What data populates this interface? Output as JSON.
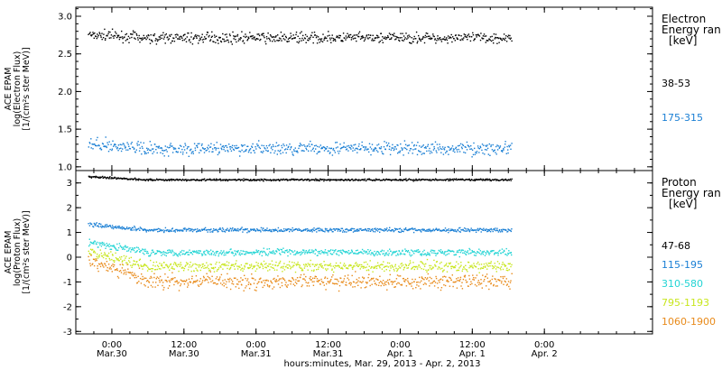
{
  "chart_data": [
    {
      "type": "scatter",
      "ylabel_lines": [
        "ACE EPAM",
        "log(Electron Flux)",
        "[1/(cm²s ster MeV)]"
      ],
      "ylim": [
        0.95,
        3.12
      ],
      "yticks": [
        {
          "value": 1.0,
          "label": "1.0"
        },
        {
          "value": 1.5,
          "label": "1.5"
        },
        {
          "value": 2.0,
          "label": "2.0"
        },
        {
          "value": 2.5,
          "label": "2.5"
        },
        {
          "value": 3.0,
          "label": "3.0"
        }
      ],
      "legend_title": [
        "Electron",
        "Energy ran",
        "[keV]"
      ],
      "series": [
        {
          "name": "38-53",
          "color": "#000000",
          "level": 2.72,
          "spread": 0.05
        },
        {
          "name": "175-315",
          "color": "#1a7fd4",
          "level": 1.25,
          "spread": 0.06
        }
      ]
    },
    {
      "type": "scatter",
      "ylabel_lines": [
        "ACE EPAM",
        "log(Proton Flux)",
        "[1/(cm²s ster MeV)]"
      ],
      "ylim": [
        -3.1,
        3.5
      ],
      "yticks": [
        {
          "value": -3,
          "label": "-3"
        },
        {
          "value": -2,
          "label": "-2"
        },
        {
          "value": -1,
          "label": "-1"
        },
        {
          "value": 0,
          "label": "0"
        },
        {
          "value": 1,
          "label": "1"
        },
        {
          "value": 2,
          "label": "2"
        },
        {
          "value": 3,
          "label": "3"
        }
      ],
      "legend_title": [
        "Proton",
        "Energy ran",
        "[keV]"
      ],
      "series": [
        {
          "name": "47-68",
          "color": "#000000",
          "level": 3.15,
          "spread": 0.03
        },
        {
          "name": "115-195",
          "color": "#1a7fd4",
          "level": 1.12,
          "spread": 0.06
        },
        {
          "name": "310-580",
          "color": "#22d4d4",
          "level": 0.22,
          "spread": 0.1
        },
        {
          "name": "795-1193",
          "color": "#c8e61e",
          "level": -0.35,
          "spread": 0.15
        },
        {
          "name": "1060-1900",
          "color": "#e88a1a",
          "level": -0.95,
          "spread": 0.22
        }
      ]
    }
  ],
  "x_axis": {
    "range_hours": [
      -6,
      90
    ],
    "ticks": [
      {
        "hour": 0,
        "line1": "0:00",
        "line2": "Mar.30"
      },
      {
        "hour": 12,
        "line1": "12:00",
        "line2": "Mar.30"
      },
      {
        "hour": 24,
        "line1": "0:00",
        "line2": "Mar.31"
      },
      {
        "hour": 36,
        "line1": "12:00",
        "line2": "Mar.31"
      },
      {
        "hour": 48,
        "line1": "0:00",
        "line2": "Apr. 1"
      },
      {
        "hour": 60,
        "line1": "12:00",
        "line2": "Apr. 1"
      },
      {
        "hour": 72,
        "line1": "0:00",
        "line2": "Apr. 2"
      }
    ],
    "label": "hours:minutes, Mar. 29, 2013 - Apr.  2, 2013",
    "data_end_hour": 66.5
  }
}
